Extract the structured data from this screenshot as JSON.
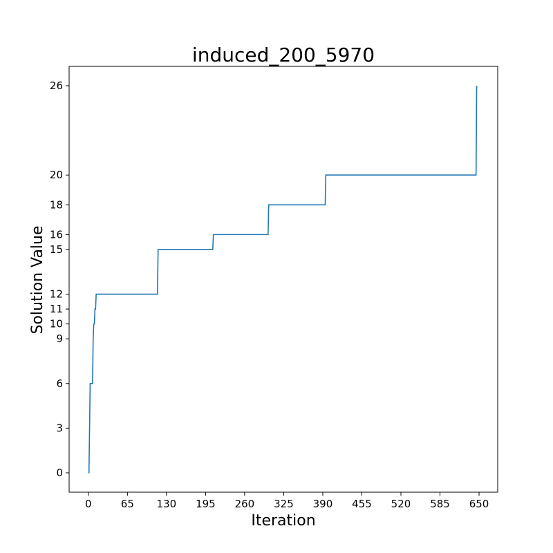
{
  "chart_data": {
    "type": "line",
    "title": "induced_200_5970",
    "xlabel": "Iteration",
    "ylabel": "Solution Value",
    "xlim": [
      -32,
      681
    ],
    "ylim": [
      -1.3,
      27.3
    ],
    "xticks": [
      0,
      65,
      130,
      195,
      260,
      325,
      390,
      455,
      520,
      585,
      650
    ],
    "yticks": [
      0,
      3,
      6,
      9,
      10,
      11,
      12,
      15,
      16,
      18,
      20,
      26
    ],
    "grid": false,
    "line_color": "#1f77b4",
    "series": [
      {
        "x": [
          0,
          1,
          3,
          4,
          7,
          8,
          9,
          10,
          11,
          12,
          13,
          14,
          115,
          116,
          207,
          208,
          299,
          300,
          394,
          395,
          645,
          646
        ],
        "y": [
          0,
          0,
          6,
          6,
          6,
          9,
          10,
          10,
          11,
          11,
          12,
          12,
          12,
          15,
          15,
          16,
          16,
          18,
          18,
          20,
          20,
          26
        ]
      }
    ]
  }
}
